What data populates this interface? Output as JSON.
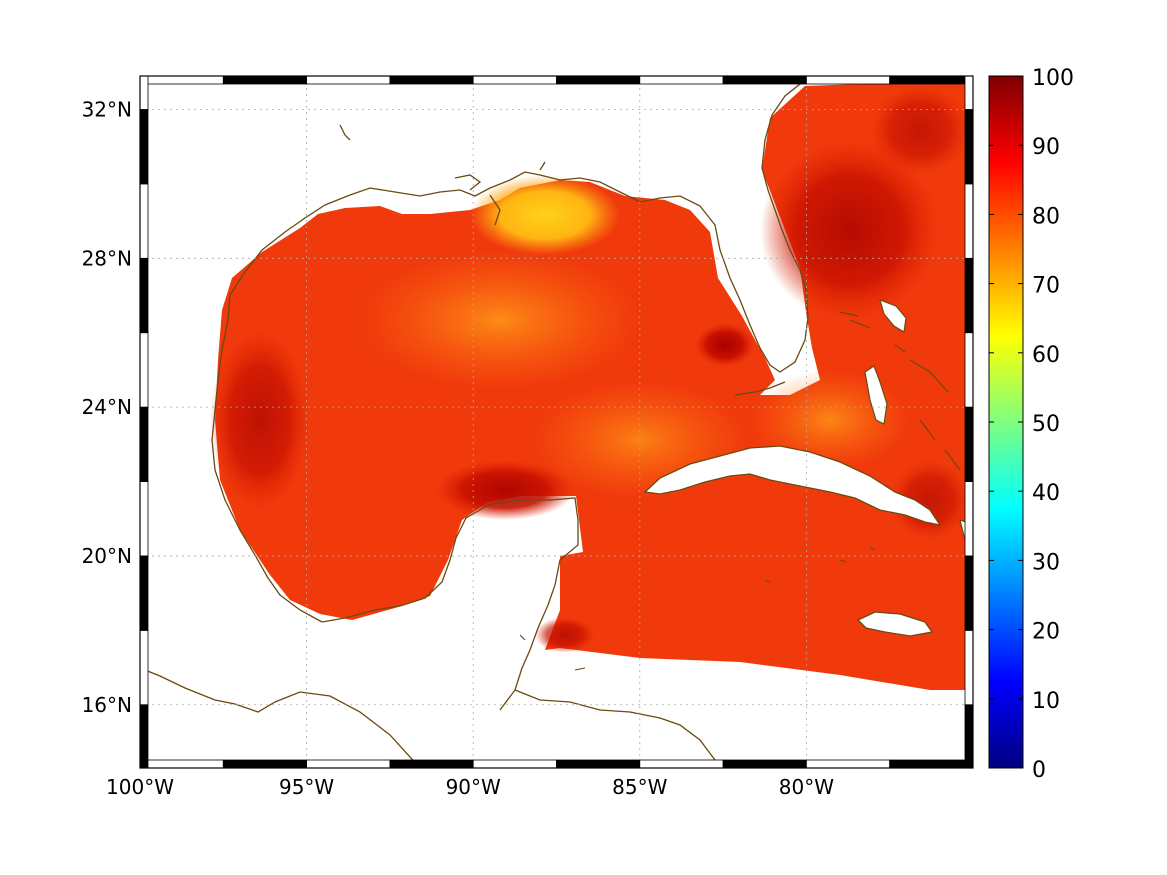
{
  "map": {
    "longitude_ticks": [
      {
        "value": -100,
        "label": "100°W"
      },
      {
        "value": -95,
        "label": "95°W"
      },
      {
        "value": -90,
        "label": "90°W"
      },
      {
        "value": -85,
        "label": "85°W"
      },
      {
        "value": -80,
        "label": "80°W"
      }
    ],
    "latitude_ticks": [
      {
        "value": 16,
        "label": "16°N"
      },
      {
        "value": 20,
        "label": "20°N"
      },
      {
        "value": 24,
        "label": "24°N"
      },
      {
        "value": 28,
        "label": "28°N"
      },
      {
        "value": 32,
        "label": "32°N"
      }
    ],
    "lon_range": [
      -100,
      -75
    ],
    "lat_range": [
      14.3,
      32.9
    ],
    "grid": true,
    "coastline_color": "#6b4a10"
  },
  "colorbar": {
    "ticks": [
      {
        "value": 0,
        "label": "0"
      },
      {
        "value": 10,
        "label": "10"
      },
      {
        "value": 20,
        "label": "20"
      },
      {
        "value": 30,
        "label": "30"
      },
      {
        "value": 40,
        "label": "40"
      },
      {
        "value": 50,
        "label": "50"
      },
      {
        "value": 60,
        "label": "60"
      },
      {
        "value": 70,
        "label": "70"
      },
      {
        "value": 80,
        "label": "80"
      },
      {
        "value": 90,
        "label": "90"
      },
      {
        "value": 100,
        "label": "100"
      }
    ],
    "range": [
      0,
      100
    ],
    "colormap": "jet",
    "stops": [
      "#00007f",
      "#0000ff",
      "#007fff",
      "#00ffff",
      "#7fff7f",
      "#ffff00",
      "#ff7f00",
      "#ff0000",
      "#7f0000"
    ]
  },
  "field": {
    "typical_value": 85,
    "land_color": "#ffffff"
  }
}
